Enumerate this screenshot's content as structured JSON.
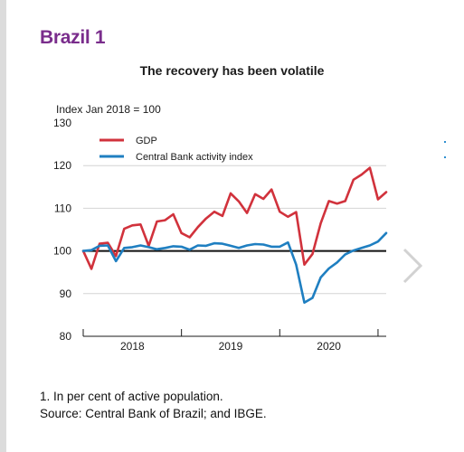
{
  "header": {
    "figure_title": "Brazil 1"
  },
  "chart_data": {
    "type": "line",
    "title": "The recovery has been volatile",
    "ylabel": "Index Jan 2018 = 100",
    "xlabel": "",
    "ylim": [
      80,
      130
    ],
    "yticks": [
      80,
      90,
      100,
      110,
      120,
      130
    ],
    "xlim": [
      0,
      36
    ],
    "xtick_labels": [
      {
        "label": "2018",
        "x": 6
      },
      {
        "label": "2019",
        "x": 18
      },
      {
        "label": "2020",
        "x": 30
      }
    ],
    "reference_line": 100,
    "legend_position": "top-left",
    "series": [
      {
        "name": "GDP",
        "color": "#d1323c",
        "x": [
          0,
          1,
          2,
          3,
          4,
          5,
          6,
          7,
          8,
          9,
          10,
          11,
          12,
          13,
          14,
          15,
          16,
          17,
          18,
          19,
          20,
          21,
          22,
          23,
          24,
          25,
          26,
          27,
          28,
          29,
          30,
          31,
          32,
          33,
          34,
          35,
          36,
          37
        ],
        "values": [
          100,
          95.8,
          101.7,
          101.9,
          98.8,
          105.2,
          106,
          106.2,
          101.2,
          106.9,
          107.2,
          108.6,
          104.2,
          103.2,
          105.6,
          107.6,
          109.2,
          108.2,
          113.5,
          111.6,
          108.9,
          113.3,
          112.2,
          114.4,
          109.2,
          108,
          109.1,
          96.8,
          99.3,
          106.5,
          111.7,
          111.1,
          111.7,
          116.7,
          117.9,
          119.5,
          112.1,
          113.8
        ]
      },
      {
        "name": "Central Bank activity index",
        "color": "#1f7fc1",
        "x": [
          0,
          1,
          2,
          3,
          4,
          5,
          6,
          7,
          8,
          9,
          10,
          11,
          12,
          13,
          14,
          15,
          16,
          17,
          18,
          19,
          20,
          21,
          22,
          23,
          24,
          25,
          26,
          27,
          28,
          29,
          30,
          31,
          32,
          33,
          34,
          35,
          36,
          37
        ],
        "values": [
          100,
          100.2,
          101.2,
          101.3,
          97.6,
          100.7,
          100.9,
          101.3,
          100.9,
          100.4,
          100.7,
          101.1,
          101,
          100.3,
          101.3,
          101.2,
          101.8,
          101.7,
          101.2,
          100.7,
          101.3,
          101.6,
          101.5,
          101,
          101,
          102,
          96.8,
          87.9,
          89,
          93.8,
          95.9,
          97.3,
          99.2,
          100.1,
          100.7,
          101.3,
          102.2,
          104.2
        ]
      }
    ]
  },
  "footnote": {
    "line1": "1. In per cent of active population.",
    "line2": "Source: Central Bank of Brazil; and IBGE."
  }
}
